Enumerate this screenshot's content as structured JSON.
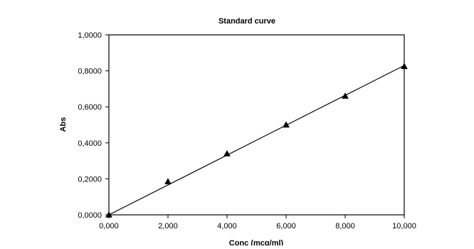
{
  "chart_data": {
    "type": "scatter",
    "title": "Standard curve",
    "xlabel": "Conc (mcg/ml)",
    "ylabel": "Abs",
    "xlim": [
      0,
      10
    ],
    "ylim": [
      0,
      1
    ],
    "x_ticks": [
      0,
      2,
      4,
      6,
      8,
      10
    ],
    "y_ticks": [
      0,
      0.2,
      0.4,
      0.6,
      0.8,
      1.0
    ],
    "x_tick_labels": [
      "0,000",
      "2,000",
      "4,000",
      "6,000",
      "8,000",
      "10,000"
    ],
    "y_tick_labels": [
      "0,0000",
      "0,2000",
      "0,4000",
      "0,6000",
      "0,8000",
      "1,0000"
    ],
    "grid": false,
    "legend": "none",
    "series": [
      {
        "marker": "triangle",
        "color": "#000000",
        "x": [
          0,
          2,
          4,
          6,
          8,
          10
        ],
        "y": [
          0.0,
          0.185,
          0.34,
          0.5,
          0.66,
          0.825
        ]
      }
    ],
    "trendline": {
      "type": "linear",
      "color": "#000000",
      "x": [
        0,
        10
      ],
      "y": [
        0.0,
        0.83
      ]
    }
  }
}
